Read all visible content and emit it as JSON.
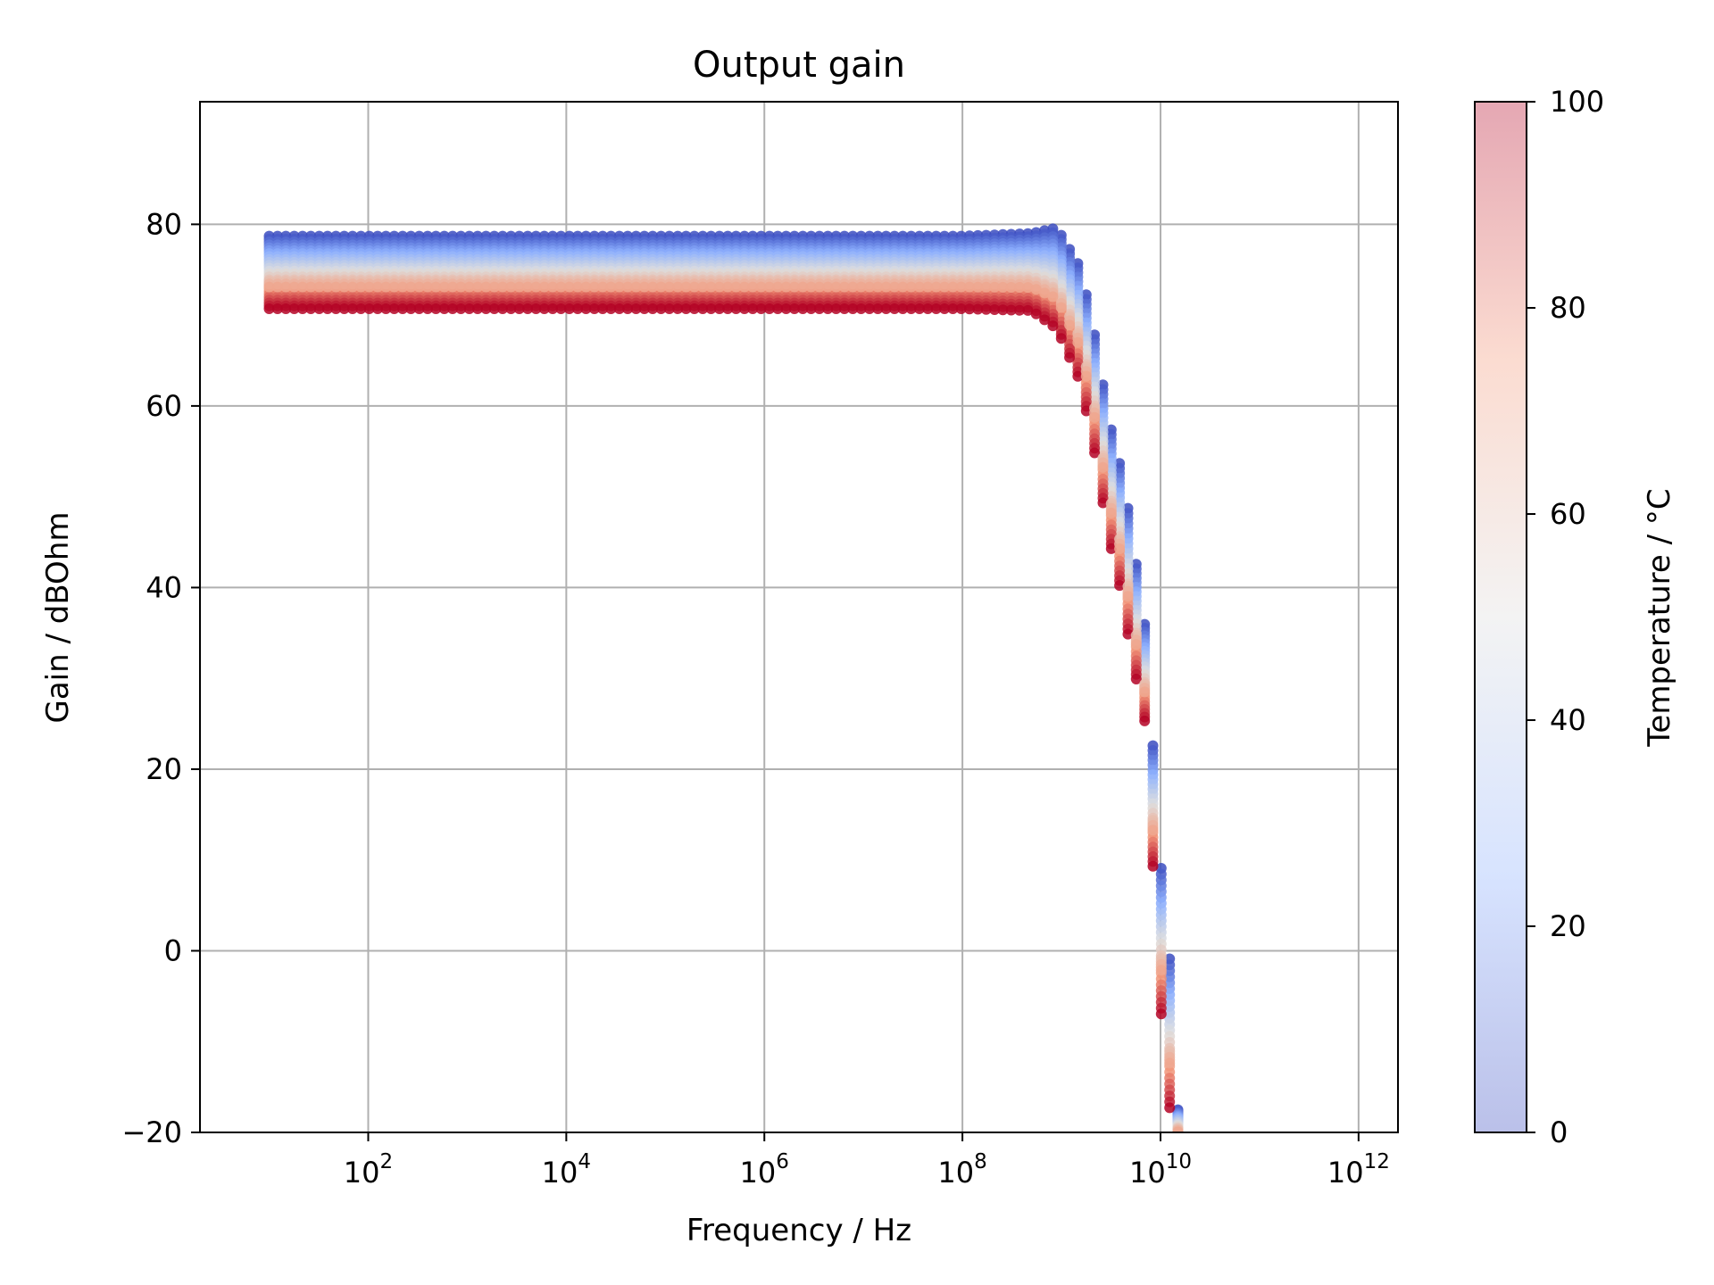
{
  "chart_data": {
    "type": "scatter",
    "title": "Output gain",
    "xlabel": "Frequency / Hz",
    "ylabel": "Gain / dBOhm",
    "x_scale": "log",
    "xlim": [
      2.0,
      2500000000000.0
    ],
    "ylim": [
      -20,
      93.5
    ],
    "x_ticks": [
      {
        "value": 100,
        "base": "10",
        "exp": "2"
      },
      {
        "value": 10000,
        "base": "10",
        "exp": "4"
      },
      {
        "value": 1000000,
        "base": "10",
        "exp": "6"
      },
      {
        "value": 100000000,
        "base": "10",
        "exp": "8"
      },
      {
        "value": 10000000000,
        "base": "10",
        "exp": "10"
      },
      {
        "value": 1000000000000,
        "base": "10",
        "exp": "12"
      }
    ],
    "y_ticks": [
      {
        "value": 80,
        "label": "80"
      },
      {
        "value": 60,
        "label": "60"
      },
      {
        "value": 40,
        "label": "40"
      },
      {
        "value": 20,
        "label": "20"
      },
      {
        "value": 0,
        "label": "0"
      },
      {
        "value": -20,
        "label": "−20"
      }
    ],
    "grid": true,
    "colorbar": {
      "label": "Temperature / °C",
      "min": 0,
      "max": 100,
      "colormap": "coolwarm",
      "alpha": 0.35,
      "ticks": [
        {
          "value": 0,
          "label": "0"
        },
        {
          "value": 20,
          "label": "20"
        },
        {
          "value": 40,
          "label": "40"
        },
        {
          "value": 60,
          "label": "60"
        },
        {
          "value": 80,
          "label": "80"
        },
        {
          "value": 100,
          "label": "100"
        }
      ]
    },
    "series": [
      {
        "temperature": 0,
        "color": "#3b4cc0",
        "x": [
          10,
          100,
          1000,
          10000,
          100000,
          1000000,
          10000000,
          100000000,
          500000000,
          900000000,
          1500000000,
          2000000000,
          3000000000,
          4000000000,
          5000000000,
          7000000000,
          10000000000,
          13000000000,
          15000000000
        ],
        "y": [
          78.7,
          78.7,
          78.7,
          78.7,
          78.7,
          78.7,
          78.7,
          78.7,
          79.0,
          79.6,
          75.5,
          70.0,
          58.5,
          53.0,
          47.0,
          35.5,
          10.0,
          -3.5,
          -17.5
        ]
      },
      {
        "temperature": 100,
        "color": "#b40426",
        "x": [
          10,
          100,
          1000,
          10000,
          100000,
          1000000,
          10000000,
          100000000,
          500000000,
          900000000,
          1500000000,
          2000000000,
          3000000000,
          4000000000,
          5000000000,
          7000000000,
          10000000000,
          13000000000,
          15000000000
        ],
        "y": [
          70.7,
          70.7,
          70.7,
          70.7,
          70.7,
          70.7,
          70.7,
          70.7,
          70.5,
          68.5,
          63.0,
          57.0,
          45.5,
          39.5,
          33.0,
          25.0,
          -6.0,
          -20.0,
          -21.0
        ]
      }
    ]
  }
}
